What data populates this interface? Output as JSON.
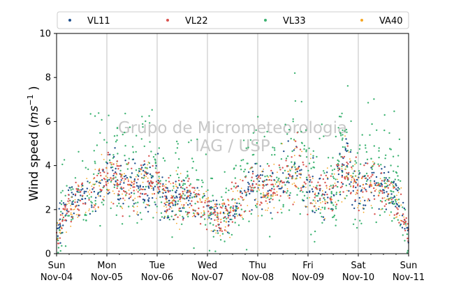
{
  "chart_data": {
    "type": "scatter",
    "ylabel": "Wind speed (ms⁻¹ )",
    "ylabel_main": "Wind speed (",
    "ylabel_unit": "ms",
    "ylabel_exp": "−1",
    "ylabel_close": " )",
    "ylim": [
      0,
      10
    ],
    "yticks": [
      0,
      2,
      4,
      6,
      8,
      10
    ],
    "xlim": [
      "2018-11-04",
      "2018-11-11"
    ],
    "x_ticks": [
      {
        "date": "2018-11-04",
        "day": "Sun",
        "label": "Nov-04"
      },
      {
        "date": "2018-11-05",
        "day": "Mon",
        "label": "Nov-05"
      },
      {
        "date": "2018-11-06",
        "day": "Tue",
        "label": "Nov-06"
      },
      {
        "date": "2018-11-07",
        "day": "Wed",
        "label": "Nov-07"
      },
      {
        "date": "2018-11-08",
        "day": "Thu",
        "label": "Nov-08"
      },
      {
        "date": "2018-11-09",
        "day": "Fri",
        "label": "Nov-09"
      },
      {
        "date": "2018-11-10",
        "day": "Sat",
        "label": "Nov-10"
      },
      {
        "date": "2018-11-11",
        "day": "Sun",
        "label": "Nov-11"
      }
    ],
    "grid": "vertical at day ticks",
    "legend_position": "top",
    "watermark": [
      "Grupo de Micrometeorologia",
      "IAG / USP"
    ],
    "series": [
      {
        "name": "VL11",
        "color": "#1f4e8c",
        "trend": [
          [
            "2018-11-04 00:00",
            1.1
          ],
          [
            "2018-11-04 06:00",
            2.2
          ],
          [
            "2018-11-04 12:00",
            2.6
          ],
          [
            "2018-11-04 18:00",
            2.9
          ],
          [
            "2018-11-05 00:00",
            3.6
          ],
          [
            "2018-11-05 06:00",
            3.2
          ],
          [
            "2018-11-05 12:00",
            3.1
          ],
          [
            "2018-11-05 18:00",
            3.4
          ],
          [
            "2018-11-06 00:00",
            3.0
          ],
          [
            "2018-11-06 06:00",
            2.4
          ],
          [
            "2018-11-06 12:00",
            2.6
          ],
          [
            "2018-11-06 18:00",
            2.6
          ],
          [
            "2018-11-07 00:00",
            2.2
          ],
          [
            "2018-11-07 06:00",
            1.3
          ],
          [
            "2018-11-07 12:00",
            1.9
          ],
          [
            "2018-11-07 18:00",
            3.0
          ],
          [
            "2018-11-08 00:00",
            3.2
          ],
          [
            "2018-11-08 06:00",
            2.9
          ],
          [
            "2018-11-08 12:00",
            3.4
          ],
          [
            "2018-11-08 18:00",
            4.0
          ],
          [
            "2018-11-09 00:00",
            3.0
          ],
          [
            "2018-11-09 06:00",
            2.7
          ],
          [
            "2018-11-09 12:00",
            2.9
          ],
          [
            "2018-11-09 18:00",
            4.3
          ],
          [
            "2018-11-10 00:00",
            2.8
          ],
          [
            "2018-11-10 06:00",
            3.4
          ],
          [
            "2018-11-10 12:00",
            3.0
          ],
          [
            "2018-11-10 18:00",
            2.7
          ],
          [
            "2018-11-11 00:00",
            0.8
          ]
        ]
      },
      {
        "name": "VL22",
        "color": "#d9534f",
        "trend": [
          [
            "2018-11-04 00:00",
            1.0
          ],
          [
            "2018-11-04 06:00",
            2.1
          ],
          [
            "2018-11-04 12:00",
            2.5
          ],
          [
            "2018-11-04 18:00",
            2.9
          ],
          [
            "2018-11-05 00:00",
            3.5
          ],
          [
            "2018-11-05 06:00",
            3.2
          ],
          [
            "2018-11-05 12:00",
            3.0
          ],
          [
            "2018-11-05 18:00",
            3.3
          ],
          [
            "2018-11-06 00:00",
            3.0
          ],
          [
            "2018-11-06 06:00",
            2.5
          ],
          [
            "2018-11-06 12:00",
            2.7
          ],
          [
            "2018-11-06 18:00",
            2.5
          ],
          [
            "2018-11-07 00:00",
            2.1
          ],
          [
            "2018-11-07 06:00",
            1.4
          ],
          [
            "2018-11-07 12:00",
            2.0
          ],
          [
            "2018-11-07 18:00",
            3.0
          ],
          [
            "2018-11-08 00:00",
            3.1
          ],
          [
            "2018-11-08 06:00",
            2.9
          ],
          [
            "2018-11-08 12:00",
            3.3
          ],
          [
            "2018-11-08 18:00",
            3.9
          ],
          [
            "2018-11-09 00:00",
            3.0
          ],
          [
            "2018-11-09 06:00",
            2.7
          ],
          [
            "2018-11-09 12:00",
            2.8
          ],
          [
            "2018-11-09 18:00",
            4.1
          ],
          [
            "2018-11-10 00:00",
            2.8
          ],
          [
            "2018-11-10 06:00",
            3.3
          ],
          [
            "2018-11-10 12:00",
            2.9
          ],
          [
            "2018-11-10 18:00",
            2.6
          ],
          [
            "2018-11-11 00:00",
            0.9
          ]
        ]
      },
      {
        "name": "VL33",
        "color": "#3cb371",
        "trend": [
          [
            "2018-11-04 00:00",
            1.0
          ],
          [
            "2018-11-04 06:00",
            2.3
          ],
          [
            "2018-11-04 12:00",
            2.8
          ],
          [
            "2018-11-04 18:00",
            3.3
          ],
          [
            "2018-11-05 00:00",
            3.9
          ],
          [
            "2018-11-05 06:00",
            3.4
          ],
          [
            "2018-11-05 12:00",
            3.3
          ],
          [
            "2018-11-05 18:00",
            3.8
          ],
          [
            "2018-11-06 00:00",
            3.1
          ],
          [
            "2018-11-06 06:00",
            2.3
          ],
          [
            "2018-11-06 12:00",
            3.0
          ],
          [
            "2018-11-06 18:00",
            2.9
          ],
          [
            "2018-11-07 00:00",
            2.0
          ],
          [
            "2018-11-07 06:00",
            1.2
          ],
          [
            "2018-11-07 12:00",
            2.0
          ],
          [
            "2018-11-07 18:00",
            3.4
          ],
          [
            "2018-11-08 00:00",
            3.5
          ],
          [
            "2018-11-08 06:00",
            3.1
          ],
          [
            "2018-11-08 12:00",
            3.9
          ],
          [
            "2018-11-08 18:00",
            4.6
          ],
          [
            "2018-11-09 00:00",
            3.1
          ],
          [
            "2018-11-09 06:00",
            2.7
          ],
          [
            "2018-11-09 12:00",
            3.2
          ],
          [
            "2018-11-09 18:00",
            4.8
          ],
          [
            "2018-11-10 00:00",
            2.9
          ],
          [
            "2018-11-10 06:00",
            3.7
          ],
          [
            "2018-11-10 12:00",
            3.2
          ],
          [
            "2018-11-10 18:00",
            2.9
          ],
          [
            "2018-11-11 00:00",
            0.7
          ]
        ]
      },
      {
        "name": "VA40",
        "color": "#f5a623",
        "trend": [
          [
            "2018-11-04 00:00",
            0.9
          ],
          [
            "2018-11-04 06:00",
            2.0
          ],
          [
            "2018-11-04 12:00",
            2.4
          ],
          [
            "2018-11-04 18:00",
            2.8
          ],
          [
            "2018-11-05 00:00",
            3.4
          ],
          [
            "2018-11-05 06:00",
            3.1
          ],
          [
            "2018-11-05 12:00",
            3.0
          ],
          [
            "2018-11-05 18:00",
            3.3
          ],
          [
            "2018-11-06 00:00",
            2.9
          ],
          [
            "2018-11-06 06:00",
            2.5
          ],
          [
            "2018-11-06 12:00",
            2.6
          ],
          [
            "2018-11-06 18:00",
            2.5
          ],
          [
            "2018-11-07 00:00",
            2.1
          ],
          [
            "2018-11-07 06:00",
            1.4
          ],
          [
            "2018-11-07 12:00",
            1.9
          ],
          [
            "2018-11-07 18:00",
            3.0
          ],
          [
            "2018-11-08 00:00",
            3.1
          ],
          [
            "2018-11-08 06:00",
            2.8
          ],
          [
            "2018-11-08 12:00",
            3.3
          ],
          [
            "2018-11-08 18:00",
            3.8
          ],
          [
            "2018-11-09 00:00",
            2.9
          ],
          [
            "2018-11-09 06:00",
            2.6
          ],
          [
            "2018-11-09 12:00",
            2.8
          ],
          [
            "2018-11-09 18:00",
            4.0
          ],
          [
            "2018-11-10 00:00",
            2.7
          ],
          [
            "2018-11-10 06:00",
            3.2
          ],
          [
            "2018-11-10 12:00",
            2.9
          ],
          [
            "2018-11-10 18:00",
            2.6
          ],
          [
            "2018-11-11 00:00",
            0.8
          ]
        ]
      }
    ]
  }
}
